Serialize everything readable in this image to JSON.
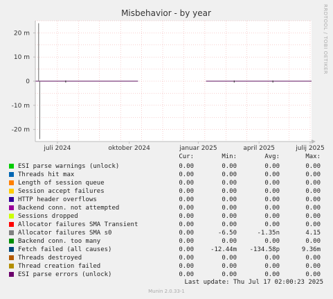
{
  "title": "Misbehavior - by year",
  "rrd_credit": "RRDTOOL / TOBI OETIKER",
  "munin_version": "Munin 2.0.33-1",
  "last_update": "Last update: Thu Jul 17 02:00:23 2025",
  "legend_headers": {
    "cur": "Cur:",
    "min": "Min:",
    "avg": "Avg:",
    "max": "Max:"
  },
  "colors": {
    "background": "#f0f0f0",
    "plot_bg": "#ffffff",
    "grid_minor": "#f0a0a0",
    "grid_major": "#e8c0c0",
    "zero_line": "#5b0c5b"
  },
  "chart_data": {
    "type": "line",
    "title": "Misbehavior - by year",
    "y_ticks": [
      {
        "value": 20000000,
        "label": "20 m"
      },
      {
        "value": 10000000,
        "label": "10 m"
      },
      {
        "value": 0,
        "label": "0"
      },
      {
        "value": -10000000,
        "label": "-10 m"
      },
      {
        "value": -20000000,
        "label": "-20 m"
      }
    ],
    "ylim": [
      -25000000,
      25000000
    ],
    "x_ticks": [
      {
        "t": 0.08,
        "label": "juli 2024"
      },
      {
        "t": 0.34,
        "label": "oktober 2024"
      },
      {
        "t": 0.59,
        "label": "januar 2025"
      },
      {
        "t": 0.81,
        "label": "april 2025"
      },
      {
        "t": 0.995,
        "label": "julij 2025"
      }
    ],
    "xlim": [
      0,
      1
    ],
    "grid": true,
    "data_gaps": [
      [
        0.372,
        0.618
      ]
    ],
    "spikes": [
      {
        "t": 0.012,
        "value": 24000000,
        "color": "#666666"
      },
      {
        "t": 0.016,
        "value": -24000000,
        "color": "#666666"
      }
    ],
    "series": [
      {
        "name": "ESI parse warnings (unlock)",
        "color": "#00cc00",
        "cur": "0.00",
        "min": "0.00",
        "avg": "0.00",
        "max": "0.00"
      },
      {
        "name": "Threads hit max",
        "color": "#0066b3",
        "cur": "0.00",
        "min": "0.00",
        "avg": "0.00",
        "max": "0.00"
      },
      {
        "name": "Length of session queue",
        "color": "#ff8000",
        "cur": "0.00",
        "min": "0.00",
        "avg": "0.00",
        "max": "0.00"
      },
      {
        "name": "Session accept failures",
        "color": "#ffcc00",
        "cur": "0.00",
        "min": "0.00",
        "avg": "0.00",
        "max": "0.00"
      },
      {
        "name": "HTTP header overflows",
        "color": "#330099",
        "cur": "0.00",
        "min": "0.00",
        "avg": "0.00",
        "max": "0.00"
      },
      {
        "name": "Backend conn. not attempted",
        "color": "#990099",
        "cur": "0.00",
        "min": "0.00",
        "avg": "0.00",
        "max": "0.00"
      },
      {
        "name": "Sessions dropped",
        "color": "#ccff00",
        "cur": "0.00",
        "min": "0.00",
        "avg": "0.00",
        "max": "0.00"
      },
      {
        "name": "Allocator failures SMA Transient",
        "color": "#ff0000",
        "cur": "0.00",
        "min": "0.00",
        "avg": "0.00",
        "max": "0.00"
      },
      {
        "name": "Allocator failures SMA s0",
        "color": "#808080",
        "cur": "0.00",
        "min": "-6.50",
        "avg": "-1.35n",
        "max": "4.15"
      },
      {
        "name": "Backend conn. too many",
        "color": "#008f00",
        "cur": "0.00",
        "min": "0.00",
        "avg": "0.00",
        "max": "0.00"
      },
      {
        "name": "Fetch failed (all causes)",
        "color": "#00487d",
        "cur": "0.00",
        "min": "-12.44m",
        "avg": "-134.58p",
        "max": "9.36m"
      },
      {
        "name": "Threads destroyed",
        "color": "#b35a00",
        "cur": "0.00",
        "min": "0.00",
        "avg": "0.00",
        "max": "0.00"
      },
      {
        "name": "Thread creation failed",
        "color": "#b38f00",
        "cur": "0.00",
        "min": "0.00",
        "avg": "0.00",
        "max": "0.00"
      },
      {
        "name": "ESI parse errors (unlock)",
        "color": "#6b006b",
        "cur": "0.00",
        "min": "0.00",
        "avg": "0.00",
        "max": "0.00"
      }
    ]
  }
}
